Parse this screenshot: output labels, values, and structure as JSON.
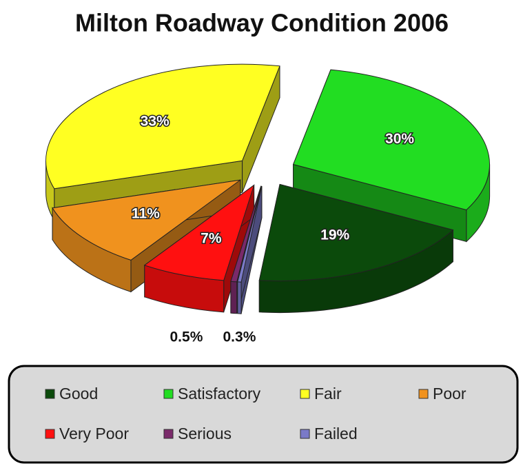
{
  "chart_data": {
    "type": "pie3d",
    "title": "Milton Roadway Condition 2006",
    "series": [
      {
        "name": "Good",
        "color": "#0b4a0b",
        "values": [
          19
        ],
        "value_labels": [
          "19%"
        ]
      },
      {
        "name": "Satisfactory",
        "color": "#22dd22",
        "values": [
          30
        ],
        "value_labels": [
          "30%"
        ]
      },
      {
        "name": "Fair",
        "color": "#ffff22",
        "values": [
          33
        ],
        "value_labels": [
          "33%"
        ]
      },
      {
        "name": "Poor",
        "color": "#f0921e",
        "values": [
          11
        ],
        "value_labels": [
          "11%"
        ]
      },
      {
        "name": "Very Poor",
        "color": "#ff1010",
        "values": [
          7
        ],
        "value_labels": [
          "7%"
        ]
      },
      {
        "name": "Serious",
        "color": "#7a2a6a",
        "values": [
          0.5
        ],
        "value_labels": [
          "0.5%"
        ]
      },
      {
        "name": "Failed",
        "color": "#7a7ac8",
        "values": [
          0.3
        ],
        "value_labels": [
          "0.3%"
        ]
      }
    ]
  }
}
